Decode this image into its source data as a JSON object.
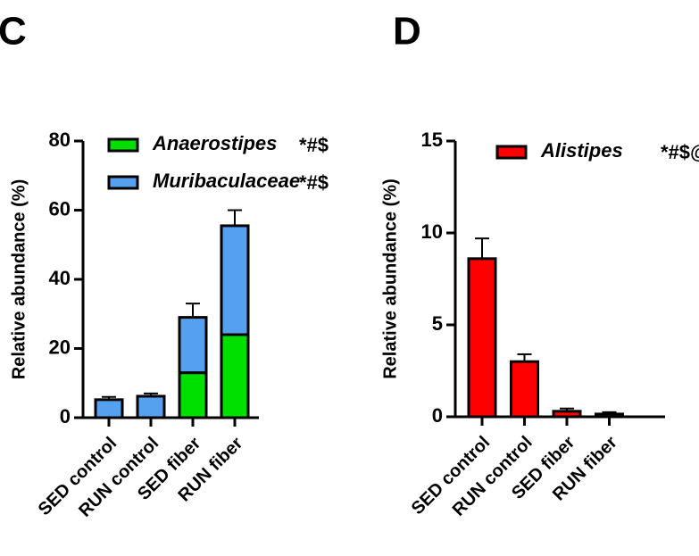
{
  "chart_data": [
    {
      "type": "bar",
      "stacked": true,
      "panel": "C",
      "ylabel": "Relative abundance (%)",
      "categories": [
        "SED control",
        "RUN control",
        "SED fiber",
        "RUN fiber"
      ],
      "ylim": [
        0,
        80
      ],
      "yticks": [
        0,
        20,
        40,
        60,
        80
      ],
      "series": [
        {
          "name": "Anaerostipes",
          "annotation": "*#$",
          "color": "#00e000",
          "values": [
            0,
            0,
            13,
            24
          ],
          "errors": [
            0,
            0,
            4,
            6.5
          ]
        },
        {
          "name": "Muribaculaceae",
          "annotation": "*#$",
          "color": "#56a0f0",
          "values": [
            5.2,
            6.2,
            16,
            31.5
          ],
          "errors": [
            0.8,
            0.8,
            4,
            4.5
          ]
        }
      ]
    },
    {
      "type": "bar",
      "stacked": false,
      "panel": "D",
      "ylabel": "Relative abundance (%)",
      "categories": [
        "SED control",
        "RUN control",
        "SED fiber",
        "RUN fiber"
      ],
      "ylim": [
        0,
        15
      ],
      "yticks": [
        0,
        5,
        10,
        15
      ],
      "series": [
        {
          "name": "Alistipes",
          "annotation": "*#$@",
          "color": "#ff0000",
          "values": [
            8.6,
            3.0,
            0.3,
            0.15
          ],
          "errors": [
            1.1,
            0.4,
            0.15,
            0.1
          ]
        }
      ]
    }
  ]
}
